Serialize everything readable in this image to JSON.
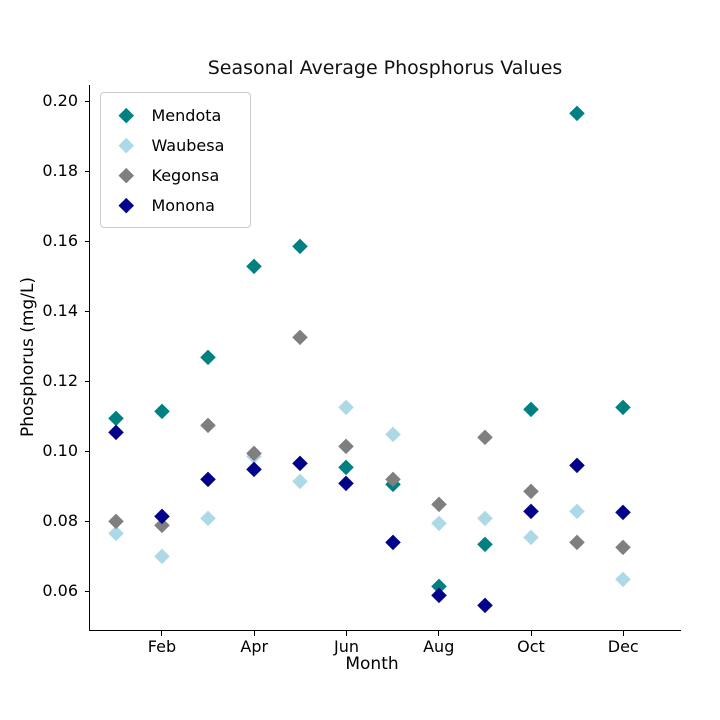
{
  "chart_data": {
    "type": "scatter",
    "title": "Seasonal Average Phosphorus Values",
    "xlabel": "Month",
    "ylabel": "Phosphorus (mg/L)",
    "marker": "diamond",
    "grid": false,
    "legend_position": "upper left",
    "xlim": [
      0.44,
      13.23
    ],
    "ylim": [
      0.0489,
      0.2046
    ],
    "x_months": [
      1,
      2,
      3,
      4,
      5,
      6,
      7,
      8,
      9,
      10,
      11,
      12
    ],
    "x_ticks": [
      {
        "month": 2,
        "label": "Feb"
      },
      {
        "month": 4,
        "label": "Apr"
      },
      {
        "month": 6,
        "label": "Jun"
      },
      {
        "month": 8,
        "label": "Aug"
      },
      {
        "month": 10,
        "label": "Oct"
      },
      {
        "month": 12,
        "label": "Dec"
      }
    ],
    "y_ticks": [
      0.2,
      0.18,
      0.16,
      0.14,
      0.12,
      0.1,
      0.08,
      0.06
    ],
    "series": [
      {
        "name": "Mendota",
        "color": "#008080",
        "values": [
          0.1095,
          0.1115,
          0.127,
          0.153,
          0.1585,
          0.0955,
          0.0905,
          0.0615,
          0.0735,
          0.112,
          0.1965,
          0.1125
        ]
      },
      {
        "name": "Waubesa",
        "color": "#ADD8E6",
        "values": [
          0.0765,
          0.07,
          0.081,
          0.0985,
          0.0915,
          0.1125,
          0.105,
          0.0795,
          0.081,
          0.0755,
          0.083,
          0.0635
        ]
      },
      {
        "name": "Kegonsa",
        "color": "#7F7F7F",
        "values": [
          0.08,
          0.079,
          0.1075,
          0.0995,
          0.1325,
          0.1015,
          0.092,
          0.085,
          0.104,
          0.0885,
          0.074,
          0.0725
        ]
      },
      {
        "name": "Monona",
        "color": "#00008B",
        "values": [
          0.1055,
          0.0815,
          0.092,
          0.095,
          0.0965,
          0.091,
          0.074,
          0.059,
          0.056,
          0.083,
          0.096,
          0.0825
        ]
      }
    ]
  }
}
